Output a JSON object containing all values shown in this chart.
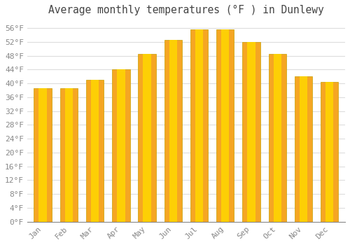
{
  "title": "Average monthly temperatures (°F ) in Dunlewy",
  "months": [
    "Jan",
    "Feb",
    "Mar",
    "Apr",
    "May",
    "Jun",
    "Jul",
    "Aug",
    "Sep",
    "Oct",
    "Nov",
    "Dec"
  ],
  "values": [
    38.5,
    38.5,
    41.0,
    44.0,
    48.5,
    52.5,
    55.5,
    55.5,
    52.0,
    48.5,
    42.0,
    40.5
  ],
  "bar_color_outer": "#F5A623",
  "bar_color_inner": "#FFD700",
  "bar_edge_color": "#C8A000",
  "ylim": [
    0,
    58
  ],
  "ytick_step": 4,
  "background_color": "#ffffff",
  "plot_bg_color": "#ffffff",
  "grid_color": "#dddddd",
  "title_fontsize": 10.5,
  "tick_fontsize": 8,
  "font_family": "monospace",
  "tick_color": "#888888",
  "title_color": "#444444"
}
